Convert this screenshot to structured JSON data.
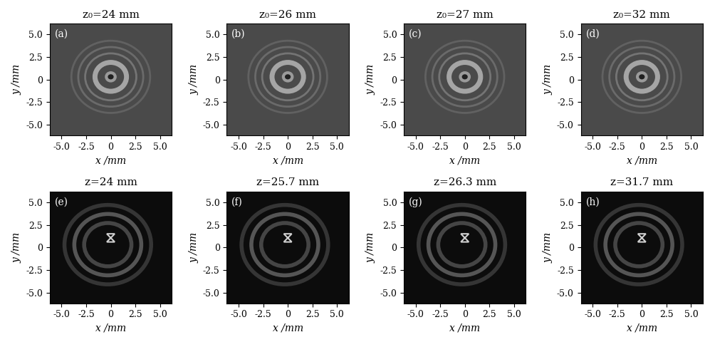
{
  "chart_data": [
    {
      "type": "image",
      "title": "z₀=24 mm",
      "annotations": [
        "(a)"
      ],
      "x_label": "x /mm",
      "y_label": "y /mm",
      "xlim": [
        -6.2,
        6.2
      ],
      "ylim": [
        -6.2,
        6.2
      ],
      "xticks": [
        -5.0,
        -2.5,
        0,
        2.5,
        5.0
      ],
      "yticks": [
        -5.0,
        -2.5,
        0,
        2.5,
        5.0
      ]
    },
    {
      "type": "image",
      "title": "z₀=26 mm",
      "annotations": [
        "(b)"
      ],
      "x_label": "x /mm",
      "y_label": "y /mm",
      "xlim": [
        -6.2,
        6.2
      ],
      "ylim": [
        -6.2,
        6.2
      ],
      "xticks": [
        -5.0,
        -2.5,
        0,
        2.5,
        5.0
      ],
      "yticks": [
        -5.0,
        -2.5,
        0,
        2.5,
        5.0
      ]
    },
    {
      "type": "image",
      "title": "z₀=27 mm",
      "annotations": [
        "(c)"
      ],
      "x_label": "x /mm",
      "y_label": "y /mm",
      "xlim": [
        -6.2,
        6.2
      ],
      "ylim": [
        -6.2,
        6.2
      ],
      "xticks": [
        -5.0,
        -2.5,
        0,
        2.5,
        5.0
      ],
      "yticks": [
        -5.0,
        -2.5,
        0,
        2.5,
        5.0
      ]
    },
    {
      "type": "image",
      "title": "z₀=32 mm",
      "annotations": [
        "(d)"
      ],
      "x_label": "x /mm",
      "y_label": "y /mm",
      "xlim": [
        -6.2,
        6.2
      ],
      "ylim": [
        -6.2,
        6.2
      ],
      "xticks": [
        -5.0,
        -2.5,
        0,
        2.5,
        5.0
      ],
      "yticks": [
        -5.0,
        -2.5,
        0,
        2.5,
        5.0
      ]
    },
    {
      "type": "image",
      "title": "z=24 mm",
      "annotations": [
        "(e)"
      ],
      "x_label": "x /mm",
      "y_label": "y /mm",
      "xlim": [
        -6.2,
        6.2
      ],
      "ylim": [
        -6.2,
        6.2
      ],
      "xticks": [
        -5.0,
        -2.5,
        0,
        2.5,
        5.0
      ],
      "yticks": [
        -5.0,
        -2.5,
        0,
        2.5,
        5.0
      ]
    },
    {
      "type": "image",
      "title": "z=25.7 mm",
      "annotations": [
        "(f)"
      ],
      "x_label": "x /mm",
      "y_label": "y /mm",
      "xlim": [
        -6.2,
        6.2
      ],
      "ylim": [
        -6.2,
        6.2
      ],
      "xticks": [
        -5.0,
        -2.5,
        0,
        2.5,
        5.0
      ],
      "yticks": [
        -5.0,
        -2.5,
        0,
        2.5,
        5.0
      ]
    },
    {
      "type": "image",
      "title": "z=26.3 mm",
      "annotations": [
        "(g)"
      ],
      "x_label": "x /mm",
      "y_label": "y /mm",
      "xlim": [
        -6.2,
        6.2
      ],
      "ylim": [
        -6.2,
        6.2
      ],
      "xticks": [
        -5.0,
        -2.5,
        0,
        2.5,
        5.0
      ],
      "yticks": [
        -5.0,
        -2.5,
        0,
        2.5,
        5.0
      ]
    },
    {
      "type": "image",
      "title": "z=31.7 mm",
      "annotations": [
        "(h)"
      ],
      "x_label": "x /mm",
      "y_label": "y /mm",
      "xlim": [
        -6.2,
        6.2
      ],
      "ylim": [
        -6.2,
        6.2
      ],
      "xticks": [
        -5.0,
        -2.5,
        0,
        2.5,
        5.0
      ],
      "yticks": [
        -5.0,
        -2.5,
        0,
        2.5,
        5.0
      ]
    }
  ]
}
